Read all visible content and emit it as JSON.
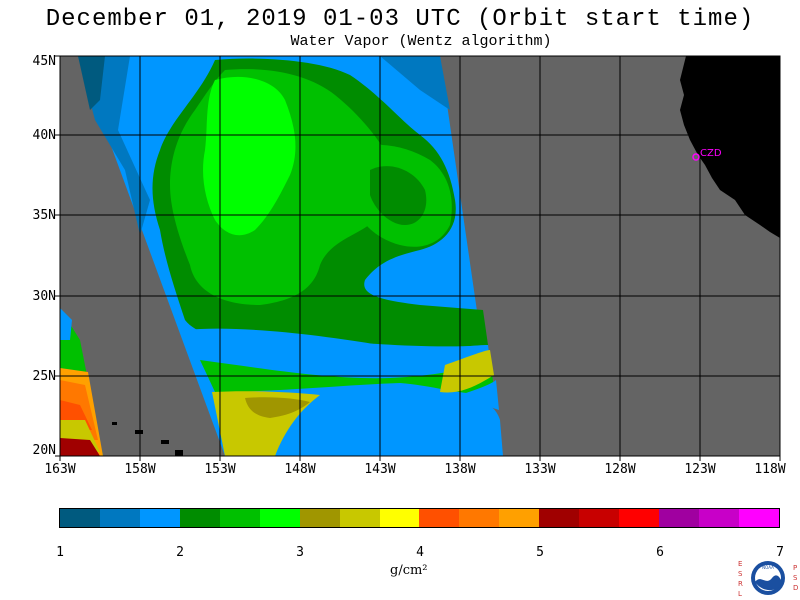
{
  "header": {
    "title": "December 01, 2019  01-03 UTC  (Orbit start time)",
    "subtitle": "Water Vapor (Wentz algorithm)"
  },
  "axes": {
    "lat_labels": [
      "45N",
      "40N",
      "35N",
      "30N",
      "25N",
      "20N"
    ],
    "lon_labels": [
      "163W",
      "158W",
      "153W",
      "148W",
      "143W",
      "138W",
      "133W",
      "128W",
      "123W",
      "118W"
    ]
  },
  "map": {
    "marker_label": "CZD",
    "land_color": "#000000",
    "nodata_color": "#646464",
    "grid_color": "#000000",
    "marker_color": "#ff00ff"
  },
  "colorbar": {
    "colors": [
      "#005a7f",
      "#0078c0",
      "#0096ff",
      "#008c00",
      "#00c000",
      "#00ff00",
      "#a09600",
      "#c8c800",
      "#ffff00",
      "#ff5000",
      "#ff7800",
      "#ffa000",
      "#a00000",
      "#c80000",
      "#ff0000",
      "#a000a0",
      "#c800c8",
      "#ff00ff"
    ],
    "tick_labels": [
      "1",
      "2",
      "3",
      "4",
      "5",
      "6",
      "7"
    ],
    "units": "g/cm²"
  },
  "logo": {
    "left_letters": "ESRL",
    "right_letters": "PSD",
    "center_text": "NOAA"
  }
}
